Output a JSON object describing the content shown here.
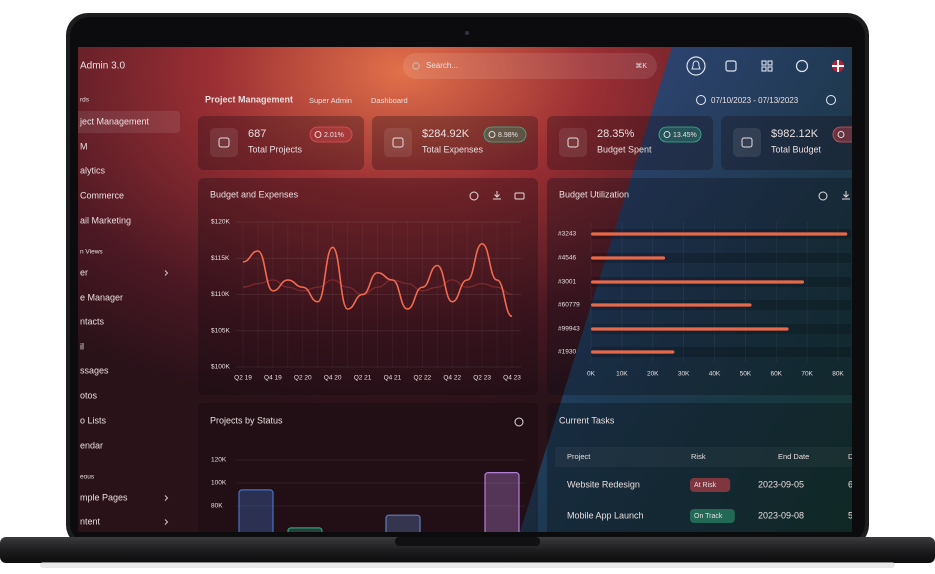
{
  "topbar": {
    "brand": "Admin 3.0",
    "search_placeholder": "Search...",
    "shortcut": "⌘K"
  },
  "sidebar": {
    "items": [
      {
        "label": "rds",
        "kind": "section"
      },
      {
        "label": "ject Management",
        "kind": "active"
      },
      {
        "label": "M",
        "kind": "item"
      },
      {
        "label": "alytics",
        "kind": "item"
      },
      {
        "label": "Commerce",
        "kind": "item"
      },
      {
        "label": "ail Marketing",
        "kind": "item"
      },
      {
        "label": "n Views",
        "kind": "section"
      },
      {
        "label": "er",
        "kind": "item",
        "submenu": true
      },
      {
        "label": "e Manager",
        "kind": "item"
      },
      {
        "label": "ntacts",
        "kind": "item"
      },
      {
        "label": "il",
        "kind": "item"
      },
      {
        "label": "ssages",
        "kind": "item"
      },
      {
        "label": "otos",
        "kind": "item"
      },
      {
        "label": "o Lists",
        "kind": "item"
      },
      {
        "label": "endar",
        "kind": "item"
      },
      {
        "label": "eous",
        "kind": "section"
      },
      {
        "label": "mple Pages",
        "kind": "item",
        "submenu": true
      },
      {
        "label": "ntent",
        "kind": "item",
        "submenu": true
      }
    ]
  },
  "header": {
    "title": "Project Management",
    "breadcrumb": [
      "Super Admin",
      "Dashboard"
    ],
    "date_range": "07/10/2023 - 07/13/2023"
  },
  "stats": [
    {
      "value": "687",
      "label": "Total Projects",
      "change": "2.01%",
      "trend": "down"
    },
    {
      "value": "$284.92K",
      "label": "Total Expenses",
      "change": "8.98%",
      "trend": "up"
    },
    {
      "value": "28.35%",
      "label": "Budget Spent",
      "change": "13.45%",
      "trend": "up"
    },
    {
      "value": "$982.12K",
      "label": "Total Budget",
      "trend": "down"
    }
  ],
  "chart_data": [
    {
      "type": "line",
      "title": "Budget and Expenses",
      "categories": [
        "Q2 19",
        null,
        "Q4 19",
        null,
        "Q2 20",
        null,
        "Q4 20",
        null,
        "Q2 21",
        null,
        "Q4 21",
        null,
        "Q2 22",
        null,
        "Q4 22",
        null,
        "Q2 23",
        null,
        "Q4 23"
      ],
      "series": [
        {
          "name": "Budget",
          "color": "#f26b4f",
          "values": [
            114500,
            116000,
            110500,
            112000,
            111000,
            109000,
            116500,
            108000,
            110000,
            113000,
            112000,
            108000,
            111000,
            114000,
            109000,
            112000,
            117000,
            112000,
            107000
          ]
        },
        {
          "name": "Expenses",
          "color": "#7a2a2e",
          "values": [
            111000,
            111500,
            112000,
            111000,
            110500,
            111000,
            112000,
            111000,
            110000,
            111000,
            112000,
            111500,
            110500,
            111000,
            112000,
            111000,
            111500,
            111000,
            110000
          ]
        }
      ],
      "ylim": [
        100000,
        120000
      ],
      "yticks": [
        {
          "value": 100000,
          "label": "$100K"
        },
        {
          "value": 105000,
          "label": "$105K"
        },
        {
          "value": 110000,
          "label": "$110K"
        },
        {
          "value": 115000,
          "label": "$115K"
        },
        {
          "value": 120000,
          "label": "$120K"
        }
      ],
      "grid": true
    },
    {
      "type": "bar",
      "orientation": "horizontal",
      "title": "Budget Utilization",
      "categories": [
        "#3243",
        "#4546",
        "#3001",
        "#60779",
        "#99943",
        "#1930"
      ],
      "values": [
        83000,
        24000,
        69000,
        52000,
        64000,
        27000
      ],
      "color": "#e8684a",
      "xlim": [
        0,
        80000
      ],
      "xticks": [
        {
          "value": 0,
          "label": "0K"
        },
        {
          "value": 10000,
          "label": "10K"
        },
        {
          "value": 20000,
          "label": "20K"
        },
        {
          "value": 30000,
          "label": "30K"
        },
        {
          "value": 40000,
          "label": "40K"
        },
        {
          "value": 50000,
          "label": "50K"
        },
        {
          "value": 60000,
          "label": "60K"
        },
        {
          "value": 70000,
          "label": "70K"
        },
        {
          "value": 80000,
          "label": "80K"
        }
      ],
      "grid": true
    },
    {
      "type": "bar",
      "orientation": "vertical",
      "title": "Projects by Status",
      "values": [
        94000,
        61000,
        72000,
        109000
      ],
      "colors": [
        "#3f73c9",
        "#2e9c7a",
        "#5a7fbf",
        "#b27fd6"
      ],
      "ylim": [
        0,
        120000
      ],
      "yticks": [
        {
          "value": 80000,
          "label": "80K"
        },
        {
          "value": 100000,
          "label": "100K"
        },
        {
          "value": 120000,
          "label": "120K"
        }
      ],
      "grid": true
    }
  ],
  "tasks": {
    "title": "Current Tasks",
    "columns": [
      "Project",
      "Risk",
      "End Date",
      "D"
    ],
    "rows": [
      {
        "project": "Website Redesign",
        "risk": "At Risk",
        "risk_color": "#d9424a",
        "end_date": "2023-09-05",
        "extra": "6"
      },
      {
        "project": "Mobile App Launch",
        "risk": "On Track",
        "risk_color": "#2f9e77",
        "end_date": "2023-09-08",
        "extra": "5"
      }
    ]
  }
}
